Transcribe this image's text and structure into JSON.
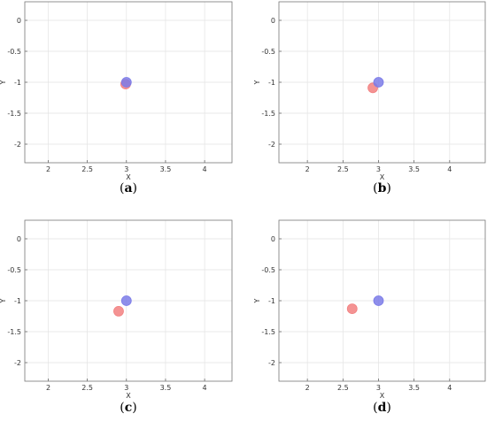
{
  "chart_data": [
    {
      "type": "scatter",
      "caption_letter": "a",
      "xlabel": "X",
      "ylabel": "Y",
      "xlim": [
        1.7,
        4.35
      ],
      "ylim": [
        -2.3,
        0.3
      ],
      "xticks": [
        "2",
        "2.5",
        "3",
        "3.5",
        "4"
      ],
      "yticks": [
        "0",
        "-0.5",
        "-1",
        "-1.5",
        "-2"
      ],
      "grid": true,
      "series": [
        {
          "color": "#f28080",
          "points": [
            {
              "x": 2.99,
              "y": -1.03
            }
          ]
        },
        {
          "color": "#7b7be8",
          "points": [
            {
              "x": 3.0,
              "y": -1.0
            }
          ]
        }
      ]
    },
    {
      "type": "scatter",
      "caption_letter": "b",
      "xlabel": "X",
      "ylabel": "Y",
      "xlim": [
        1.6,
        4.5
      ],
      "ylim": [
        -2.3,
        0.3
      ],
      "xticks": [
        "2",
        "2.5",
        "3",
        "3.5",
        "4"
      ],
      "yticks": [
        "0",
        "-0.5",
        "-1",
        "-1.5",
        "-2"
      ],
      "grid": true,
      "series": [
        {
          "color": "#f28080",
          "points": [
            {
              "x": 2.92,
              "y": -1.09
            }
          ]
        },
        {
          "color": "#7b7be8",
          "points": [
            {
              "x": 3.0,
              "y": -1.0
            }
          ]
        }
      ]
    },
    {
      "type": "scatter",
      "caption_letter": "c",
      "xlabel": "X",
      "ylabel": "Y",
      "xlim": [
        1.7,
        4.35
      ],
      "ylim": [
        -2.3,
        0.3
      ],
      "xticks": [
        "2",
        "2.5",
        "3",
        "3.5",
        "4"
      ],
      "yticks": [
        "0",
        "-0.5",
        "-1",
        "-1.5",
        "-2"
      ],
      "grid": true,
      "series": [
        {
          "color": "#f28080",
          "points": [
            {
              "x": 2.9,
              "y": -1.17
            }
          ]
        },
        {
          "color": "#7b7be8",
          "points": [
            {
              "x": 3.0,
              "y": -1.0
            }
          ]
        }
      ]
    },
    {
      "type": "scatter",
      "caption_letter": "d",
      "xlabel": "X",
      "ylabel": "Y",
      "xlim": [
        1.6,
        4.5
      ],
      "ylim": [
        -2.3,
        0.3
      ],
      "xticks": [
        "2",
        "2.5",
        "3",
        "3.5",
        "4"
      ],
      "yticks": [
        "0",
        "-0.5",
        "-1",
        "-1.5",
        "-2"
      ],
      "grid": true,
      "series": [
        {
          "color": "#f28080",
          "points": [
            {
              "x": 2.63,
              "y": -1.13
            }
          ]
        },
        {
          "color": "#7b7be8",
          "points": [
            {
              "x": 3.0,
              "y": -1.0
            }
          ]
        }
      ]
    }
  ]
}
